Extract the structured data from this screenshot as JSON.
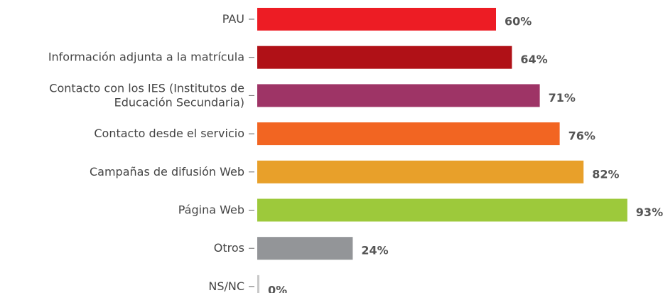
{
  "chart_data": {
    "type": "bar",
    "orientation": "horizontal",
    "categories": [
      "PAU",
      "Información adjunta a la matrícula",
      "Contacto con los IES (Institutos de\nEducación Secundaria)",
      "Contacto desde el servicio",
      "Campañas de difusión Web",
      "Página Web",
      "Otros",
      "NS/NC"
    ],
    "values": [
      60,
      64,
      71,
      76,
      82,
      93,
      24,
      0
    ],
    "value_labels": [
      "60%",
      "64%",
      "71%",
      "76%",
      "82%",
      "93%",
      "24%",
      "0%"
    ],
    "colors": [
      "#ed1c24",
      "#b01117",
      "#9e3466",
      "#f26522",
      "#e8a02a",
      "#9dc93b",
      "#939598",
      "#c8c8c8"
    ]
  }
}
